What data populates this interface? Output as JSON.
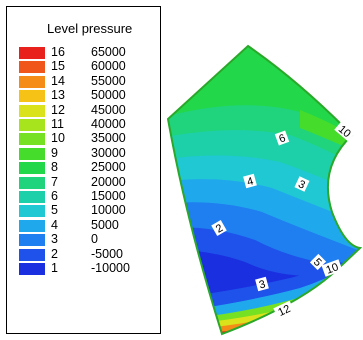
{
  "chart_data": {
    "type": "heatmap",
    "legend": {
      "title": "Level pressure",
      "entries": [
        {
          "level": "16",
          "value": "65000",
          "color": "#e8211c"
        },
        {
          "level": "15",
          "value": "60000",
          "color": "#f0561a"
        },
        {
          "level": "14",
          "value": "55000",
          "color": "#f58c17"
        },
        {
          "level": "13",
          "value": "50000",
          "color": "#f5c215"
        },
        {
          "level": "12",
          "value": "45000",
          "color": "#d9e21a"
        },
        {
          "level": "11",
          "value": "40000",
          "color": "#a8e41e"
        },
        {
          "level": "10",
          "value": "35000",
          "color": "#76e022"
        },
        {
          "level": "9",
          "value": "30000",
          "color": "#45dc2c"
        },
        {
          "level": "8",
          "value": "25000",
          "color": "#22d84a"
        },
        {
          "level": "7",
          "value": "20000",
          "color": "#1fd47c"
        },
        {
          "level": "6",
          "value": "15000",
          "color": "#1ed0aa"
        },
        {
          "level": "5",
          "value": "10000",
          "color": "#1fc8d2"
        },
        {
          "level": "4",
          "value": "5000",
          "color": "#20a8ec"
        },
        {
          "level": "3",
          "value": "0",
          "color": "#1f7ef0"
        },
        {
          "level": "2",
          "value": "-5000",
          "color": "#1e52ea"
        },
        {
          "level": "1",
          "value": "-10000",
          "color": "#1a2fe0"
        }
      ]
    },
    "contour_labels": [
      "6",
      "10",
      "4",
      "3",
      "2",
      "5",
      "10",
      "3",
      "12"
    ]
  }
}
